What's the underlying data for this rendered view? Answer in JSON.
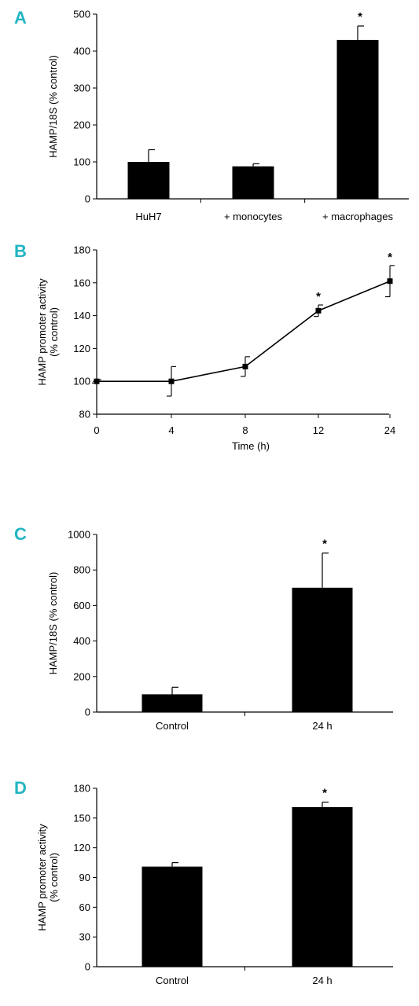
{
  "colors": {
    "panel_letter": "#22b5c3",
    "bar": "#000000",
    "axis": "#000000"
  },
  "chart_data": [
    {
      "panel": "A",
      "type": "bar",
      "categories": [
        "HuH7",
        "+ monocytes",
        "+ macrophages"
      ],
      "values": [
        100,
        88,
        430
      ],
      "errors": [
        33,
        7,
        38
      ],
      "significant": [
        false,
        false,
        true
      ],
      "significance_mark": "*",
      "ylabel": "HAMP/18S (% control)",
      "xlabel": "",
      "ylim": [
        0,
        500
      ],
      "yticks": [
        0,
        100,
        200,
        300,
        400,
        500
      ],
      "grid": false
    },
    {
      "panel": "B",
      "type": "line",
      "x": [
        "0",
        "4",
        "8",
        "12",
        "24"
      ],
      "values": [
        100,
        100,
        109,
        143,
        161
      ],
      "errors": [
        1,
        9,
        6,
        3.5,
        9.5
      ],
      "significant": [
        false,
        false,
        false,
        true,
        true
      ],
      "significance_mark": "*",
      "ylabel": [
        "HAMP promoter activity",
        "(% control)"
      ],
      "xlabel": "Time (h)",
      "ylim": [
        80,
        180
      ],
      "yticks": [
        80,
        100,
        120,
        140,
        160,
        180
      ],
      "grid": false
    },
    {
      "panel": "C",
      "type": "bar",
      "categories": [
        "Control",
        "24 h"
      ],
      "values": [
        100,
        700
      ],
      "errors": [
        40,
        195
      ],
      "significant": [
        false,
        true
      ],
      "significance_mark": "*",
      "ylabel": "HAMP/18S (% control)",
      "xlabel": "",
      "ylim": [
        0,
        1000
      ],
      "yticks": [
        0,
        200,
        400,
        600,
        800,
        1000
      ],
      "grid": false
    },
    {
      "panel": "D",
      "type": "bar",
      "categories": [
        "Control",
        "24 h"
      ],
      "values": [
        101,
        161
      ],
      "errors": [
        4,
        5
      ],
      "significant": [
        false,
        true
      ],
      "significance_mark": "*",
      "ylabel": [
        "HAMP promoter activity",
        "(% control)"
      ],
      "xlabel": "",
      "ylim": [
        0,
        180
      ],
      "yticks": [
        0,
        30,
        60,
        90,
        120,
        150,
        180
      ],
      "grid": false
    }
  ]
}
